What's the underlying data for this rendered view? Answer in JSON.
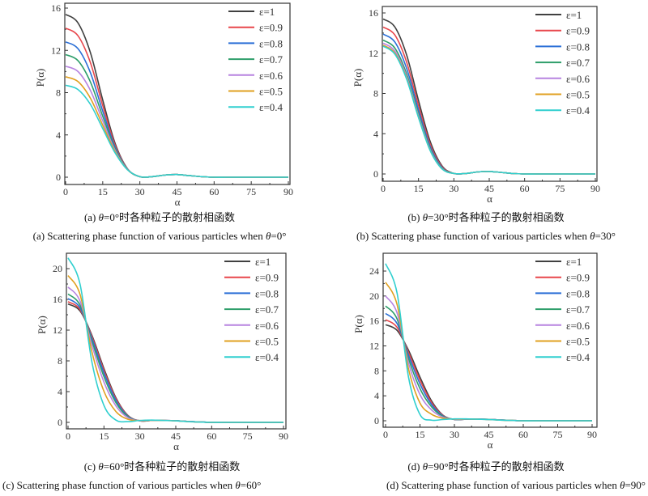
{
  "chart_data": [
    {
      "type": "line",
      "caption_cn": "(a) θ=0°时各种粒子的散射相函数",
      "caption_en": "(a) Scattering phase function of various particles when θ=0°",
      "xlabel": "α",
      "ylabel": "P(α)",
      "xlim": [
        0,
        90
      ],
      "ylim": [
        0,
        16
      ],
      "xticks": [
        0,
        15,
        30,
        45,
        60,
        75,
        90
      ],
      "yticks": [
        0,
        4,
        8,
        12,
        16
      ],
      "grid": false,
      "legend": "top-right",
      "x": [
        0,
        5,
        10,
        15,
        20,
        25,
        30,
        35,
        40,
        45,
        50,
        55,
        60,
        65,
        70,
        75,
        80,
        85,
        90
      ],
      "series": [
        {
          "name": "ε=1",
          "color": "#404040",
          "values": [
            15.4,
            14.6,
            11.8,
            7.3,
            3.2,
            0.8,
            0.05,
            0.05,
            0.2,
            0.25,
            0.15,
            0.05,
            0,
            0,
            0,
            0,
            0,
            0,
            0
          ]
        },
        {
          "name": "ε=0.9",
          "color": "#e8474c",
          "values": [
            14.1,
            13.38,
            10.85,
            6.78,
            3.03,
            0.78,
            0.05,
            0.05,
            0.2,
            0.25,
            0.15,
            0.05,
            0,
            0,
            0,
            0,
            0,
            0,
            0
          ]
        },
        {
          "name": "ε=0.8",
          "color": "#2b6fd6",
          "values": [
            12.8,
            12.16,
            9.9,
            6.25,
            2.85,
            0.76,
            0.05,
            0.05,
            0.2,
            0.25,
            0.15,
            0.05,
            0,
            0,
            0,
            0,
            0,
            0,
            0
          ]
        },
        {
          "name": "ε=0.7",
          "color": "#2e9e6a",
          "values": [
            11.6,
            11.03,
            9.02,
            5.77,
            2.69,
            0.74,
            0.05,
            0.05,
            0.2,
            0.25,
            0.15,
            0.05,
            0,
            0,
            0,
            0,
            0,
            0,
            0
          ]
        },
        {
          "name": "ε=0.6",
          "color": "#b784e0",
          "values": [
            10.5,
            10.0,
            8.22,
            5.33,
            2.54,
            0.73,
            0.05,
            0.05,
            0.2,
            0.25,
            0.15,
            0.05,
            0,
            0,
            0,
            0,
            0,
            0,
            0
          ]
        },
        {
          "name": "ε=0.5",
          "color": "#e0a020",
          "values": [
            9.5,
            9.05,
            7.48,
            4.92,
            2.41,
            0.71,
            0.05,
            0.05,
            0.2,
            0.25,
            0.15,
            0.05,
            0,
            0,
            0,
            0,
            0,
            0,
            0
          ]
        },
        {
          "name": "ε=0.4",
          "color": "#30cfcf",
          "values": [
            8.7,
            8.3,
            6.9,
            4.6,
            2.3,
            0.7,
            0.05,
            0.05,
            0.2,
            0.25,
            0.15,
            0.05,
            0,
            0,
            0,
            0,
            0,
            0,
            0
          ]
        }
      ]
    },
    {
      "type": "line",
      "caption_cn": "(b) θ=30°时各种粒子的散射相函数",
      "caption_en": "(b) Scattering phase function of various particles when θ=30°",
      "xlabel": "α",
      "ylabel": "P(α)",
      "xlim": [
        0,
        90
      ],
      "ylim": [
        0,
        16
      ],
      "xticks": [
        0,
        15,
        30,
        45,
        60,
        75,
        90
      ],
      "yticks": [
        0,
        4,
        8,
        12,
        16
      ],
      "grid": false,
      "legend": "top-right",
      "x": [
        0,
        5,
        10,
        15,
        20,
        25,
        30,
        35,
        40,
        45,
        50,
        55,
        60,
        65,
        70,
        75,
        80,
        85,
        90
      ],
      "series": [
        {
          "name": "ε=1",
          "color": "#404040",
          "values": [
            15.4,
            14.6,
            11.8,
            7.3,
            3.2,
            0.8,
            0.05,
            0.05,
            0.2,
            0.25,
            0.15,
            0.05,
            0,
            0,
            0,
            0,
            0,
            0,
            0
          ]
        },
        {
          "name": "ε=0.9",
          "color": "#e8474c",
          "values": [
            14.6,
            13.8,
            11.09,
            6.8,
            2.93,
            0.71,
            0.05,
            0.05,
            0.2,
            0.25,
            0.15,
            0.05,
            0,
            0,
            0,
            0,
            0,
            0,
            0
          ]
        },
        {
          "name": "ε=0.8",
          "color": "#2b6fd6",
          "values": [
            13.9,
            13.1,
            10.47,
            6.35,
            2.7,
            0.63,
            0.05,
            0.05,
            0.2,
            0.25,
            0.15,
            0.05,
            0,
            0,
            0,
            0,
            0,
            0,
            0
          ]
        },
        {
          "name": "ε=0.7",
          "color": "#2e9e6a",
          "values": [
            13.3,
            12.5,
            9.93,
            5.98,
            2.5,
            0.57,
            0.05,
            0.05,
            0.2,
            0.25,
            0.15,
            0.05,
            0,
            0,
            0,
            0,
            0,
            0,
            0
          ]
        },
        {
          "name": "ε=0.6",
          "color": "#b784e0",
          "values": [
            13.0,
            12.2,
            9.67,
            5.79,
            2.4,
            0.53,
            0.05,
            0.05,
            0.2,
            0.25,
            0.15,
            0.05,
            0,
            0,
            0,
            0,
            0,
            0,
            0
          ]
        },
        {
          "name": "ε=0.5",
          "color": "#e0a020",
          "values": [
            12.8,
            12.0,
            9.49,
            5.66,
            2.33,
            0.51,
            0.05,
            0.05,
            0.2,
            0.25,
            0.15,
            0.05,
            0,
            0,
            0,
            0,
            0,
            0,
            0
          ]
        },
        {
          "name": "ε=0.4",
          "color": "#30cfcf",
          "values": [
            12.7,
            11.9,
            9.4,
            5.6,
            2.3,
            0.5,
            0.05,
            0.05,
            0.2,
            0.25,
            0.15,
            0.05,
            0,
            0,
            0,
            0,
            0,
            0,
            0
          ]
        }
      ]
    },
    {
      "type": "line",
      "caption_cn": "(c) θ=60°时各种粒子的散射相函数",
      "caption_en": "(c) Scattering phase function of various particles when θ=60°",
      "xlabel": "α",
      "ylabel": "P(α)",
      "xlim": [
        0,
        90
      ],
      "ylim": [
        0,
        20
      ],
      "xticks": [
        0,
        15,
        30,
        45,
        60,
        75,
        90
      ],
      "yticks": [
        0,
        4,
        8,
        12,
        16,
        20
      ],
      "grid": false,
      "legend": "top-right",
      "x": [
        0,
        5,
        10,
        15,
        20,
        25,
        30,
        35,
        40,
        45,
        50,
        55,
        60,
        65,
        70,
        75,
        80,
        85,
        90
      ],
      "series": [
        {
          "name": "ε=1",
          "color": "#404040",
          "values": [
            15.4,
            14.5,
            11.3,
            7.0,
            3.2,
            0.9,
            0.2,
            0.25,
            0.25,
            0.22,
            0.12,
            0.05,
            0,
            0,
            0,
            0,
            0,
            0,
            0
          ]
        },
        {
          "name": "ε=0.9",
          "color": "#e8474c",
          "values": [
            15.7,
            14.68,
            11.13,
            6.76,
            3.06,
            0.86,
            0.2,
            0.25,
            0.25,
            0.22,
            0.12,
            0.05,
            0,
            0,
            0,
            0,
            0,
            0,
            0
          ]
        },
        {
          "name": "ε=0.8",
          "color": "#2b6fd6",
          "values": [
            16.1,
            14.91,
            10.89,
            6.44,
            2.86,
            0.81,
            0.21,
            0.25,
            0.25,
            0.22,
            0.12,
            0.05,
            0,
            0,
            0,
            0,
            0,
            0,
            0
          ]
        },
        {
          "name": "ε=0.7",
          "color": "#2e9e6a",
          "values": [
            16.7,
            15.26,
            10.54,
            5.96,
            2.57,
            0.73,
            0.21,
            0.25,
            0.25,
            0.22,
            0.12,
            0.05,
            0,
            0,
            0,
            0,
            0,
            0,
            0
          ]
        },
        {
          "name": "ε=0.6",
          "color": "#b784e0",
          "values": [
            17.6,
            15.78,
            10.02,
            5.24,
            2.14,
            0.61,
            0.22,
            0.25,
            0.25,
            0.22,
            0.12,
            0.05,
            0,
            0,
            0,
            0,
            0,
            0,
            0
          ]
        },
        {
          "name": "ε=0.5",
          "color": "#e0a020",
          "values": [
            19.1,
            16.66,
            9.14,
            4.04,
            1.41,
            0.41,
            0.24,
            0.27,
            0.25,
            0.2,
            0.1,
            0.05,
            0,
            0,
            0,
            0,
            0,
            0,
            0
          ]
        },
        {
          "name": "ε=0.4",
          "color": "#30cfcf",
          "values": [
            21.4,
            18.0,
            7.8,
            2.2,
            0.3,
            0.1,
            0.25,
            0.3,
            0.25,
            0.2,
            0.1,
            0.05,
            0,
            0,
            0,
            0,
            0,
            0,
            0
          ]
        }
      ]
    },
    {
      "type": "line",
      "caption_cn": "(d) θ=90°时各种粒子的散射相函数",
      "caption_en": "(d) Scattering phase function of various particles when θ=90°",
      "xlabel": "α",
      "ylabel": "P(α)",
      "xlim": [
        0,
        90
      ],
      "ylim": [
        0,
        24
      ],
      "xticks": [
        0,
        15,
        30,
        45,
        60,
        75,
        90
      ],
      "yticks": [
        0,
        4,
        8,
        12,
        16,
        20,
        24
      ],
      "grid": false,
      "legend": "top-right",
      "x": [
        0,
        5,
        10,
        15,
        20,
        25,
        30,
        35,
        40,
        45,
        50,
        55,
        60,
        65,
        70,
        75,
        80,
        85,
        90
      ],
      "series": [
        {
          "name": "ε=1",
          "color": "#404040",
          "values": [
            15.4,
            14.5,
            11.3,
            7.0,
            3.2,
            0.9,
            0.2,
            0.25,
            0.25,
            0.22,
            0.12,
            0.05,
            0,
            0,
            0,
            0,
            0,
            0,
            0
          ]
        },
        {
          "name": "ε=0.9",
          "color": "#e8474c",
          "values": [
            16.2,
            14.99,
            10.95,
            6.51,
            2.95,
            0.84,
            0.21,
            0.25,
            0.25,
            0.22,
            0.12,
            0.05,
            0,
            0,
            0,
            0,
            0,
            0,
            0
          ]
        },
        {
          "name": "ε=0.8",
          "color": "#2b6fd6",
          "values": [
            17.2,
            15.6,
            10.51,
            5.9,
            2.63,
            0.77,
            0.22,
            0.25,
            0.25,
            0.22,
            0.12,
            0.05,
            0,
            0,
            0,
            0,
            0,
            0,
            0
          ]
        },
        {
          "name": "ε=0.7",
          "color": "#2e9e6a",
          "values": [
            18.4,
            16.34,
            9.98,
            5.16,
            2.25,
            0.69,
            0.23,
            0.25,
            0.25,
            0.22,
            0.12,
            0.05,
            0,
            0,
            0,
            0,
            0,
            0,
            0
          ]
        },
        {
          "name": "ε=0.6",
          "color": "#b784e0",
          "values": [
            20.0,
            17.31,
            9.28,
            4.19,
            1.75,
            0.57,
            0.25,
            0.27,
            0.25,
            0.22,
            0.12,
            0.05,
            0,
            0,
            0,
            0,
            0,
            0,
            0
          ]
        },
        {
          "name": "ε=0.5",
          "color": "#e0a020",
          "values": [
            22.2,
            18.66,
            8.32,
            2.84,
            1.05,
            0.41,
            0.27,
            0.28,
            0.25,
            0.2,
            0.1,
            0.05,
            0,
            0,
            0,
            0,
            0,
            0,
            0
          ]
        },
        {
          "name": "ε=0.4",
          "color": "#30cfcf",
          "values": [
            25.2,
            20.5,
            7.0,
            1.0,
            0.1,
            0.2,
            0.3,
            0.3,
            0.25,
            0.2,
            0.1,
            0.05,
            0,
            0,
            0,
            0,
            0,
            0,
            0
          ]
        }
      ]
    }
  ]
}
